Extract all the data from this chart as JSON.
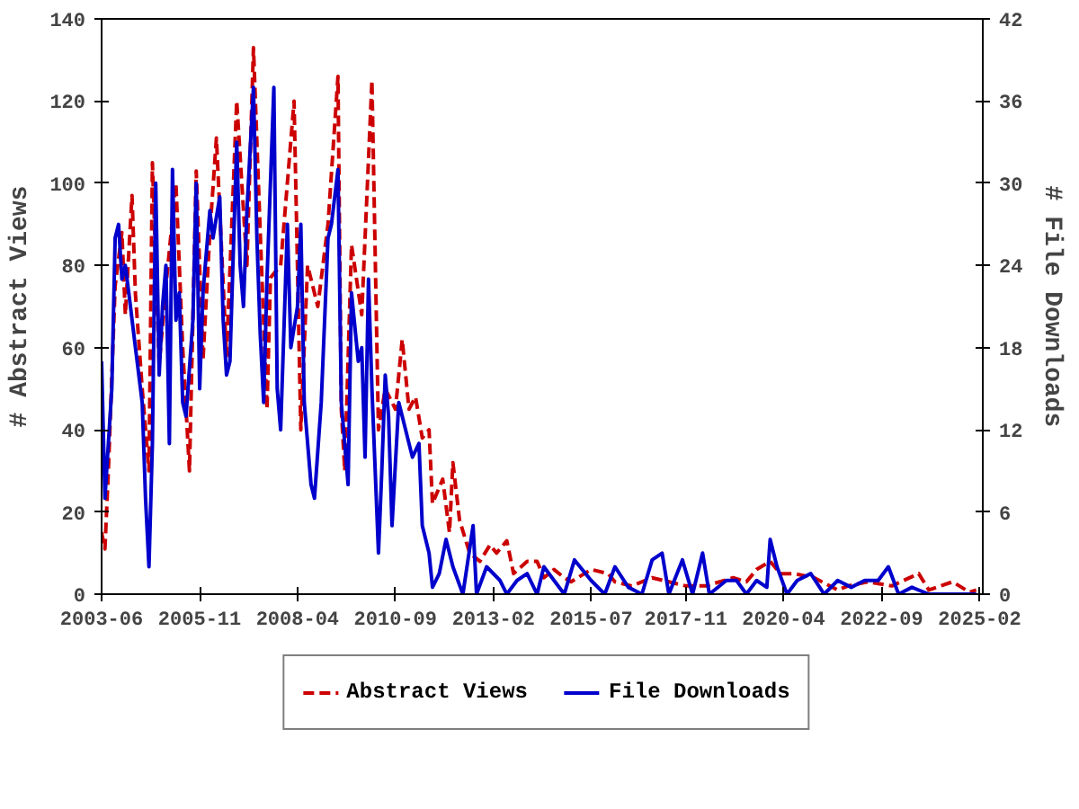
{
  "chart_data": {
    "type": "line",
    "ylabel": "# Abstract Views",
    "y2label": "# File Downloads",
    "xlim": [
      "2003-06",
      "2025-03"
    ],
    "xticks": [
      {
        "value": "2003-06",
        "label": "2003-06"
      },
      {
        "value": "2005-11",
        "label": "2005-11"
      },
      {
        "value": "2008-04",
        "label": "2008-04"
      },
      {
        "value": "2010-09",
        "label": "2010-09"
      },
      {
        "value": "2013-02",
        "label": "2013-02"
      },
      {
        "value": "2015-07",
        "label": "2015-07"
      },
      {
        "value": "2017-11",
        "label": "2017-11"
      },
      {
        "value": "2020-04",
        "label": "2020-04"
      },
      {
        "value": "2022-09",
        "label": "2022-09"
      },
      {
        "value": "2025-02",
        "label": "2025-02"
      }
    ],
    "ylim": [
      0,
      140
    ],
    "yticks": [
      0,
      20,
      40,
      60,
      80,
      100,
      120,
      140
    ],
    "y2lim": [
      0,
      42
    ],
    "y2ticks": [
      0,
      6,
      12,
      18,
      24,
      30,
      36,
      42
    ],
    "grid": false,
    "legend": "bottom",
    "marker": "none",
    "series": [
      {
        "name": "Abstract Views",
        "color": "#cc0000",
        "line_style": "dashed",
        "x": [
          "2003-06",
          "2003-07",
          "2003-08",
          "2003-10",
          "2003-12",
          "2004-01",
          "2004-03",
          "2004-04",
          "2004-06",
          "2004-08",
          "2004-09",
          "2004-11",
          "2005-01",
          "2005-04",
          "2005-06",
          "2005-08",
          "2005-10",
          "2005-12",
          "2006-02",
          "2006-04",
          "2006-07",
          "2006-10",
          "2007-01",
          "2007-03",
          "2007-05",
          "2007-07",
          "2007-08",
          "2007-11",
          "2008-03",
          "2008-05",
          "2008-07",
          "2008-10",
          "2009-01",
          "2009-04",
          "2009-05",
          "2009-06",
          "2009-08",
          "2009-11",
          "2010-02",
          "2010-04",
          "2010-06",
          "2010-09",
          "2010-11",
          "2011-01",
          "2011-03",
          "2011-05",
          "2011-07",
          "2011-08",
          "2011-11",
          "2012-01",
          "2012-02",
          "2012-04",
          "2012-07",
          "2012-10",
          "2013-01",
          "2013-03",
          "2013-06",
          "2013-08",
          "2013-12",
          "2014-03",
          "2014-05",
          "2014-08",
          "2014-11",
          "2015-01",
          "2015-07",
          "2015-12",
          "2016-02",
          "2016-07",
          "2017-01",
          "2017-06",
          "2017-11",
          "2018-05",
          "2019-01",
          "2019-05",
          "2019-08",
          "2019-12",
          "2020-03",
          "2020-07",
          "2021-01",
          "2021-08",
          "2021-11",
          "2022-05",
          "2022-12",
          "2023-08",
          "2023-11",
          "2024-06",
          "2024-11",
          "2025-01"
        ],
        "values": [
          15,
          11,
          30,
          75,
          88,
          68,
          97,
          73,
          50,
          30,
          105,
          56,
          75,
          100,
          60,
          30,
          103,
          57,
          88,
          111,
          58,
          120,
          80,
          133,
          88,
          45,
          77,
          80,
          120,
          40,
          80,
          70,
          90,
          126,
          45,
          30,
          85,
          68,
          125,
          40,
          50,
          45,
          62,
          45,
          48,
          38,
          40,
          22,
          28,
          15,
          32,
          18,
          10,
          8,
          12,
          10,
          13,
          5,
          8,
          8,
          4,
          6,
          4,
          3,
          6,
          5,
          3,
          2,
          4,
          3,
          2,
          2,
          4,
          3,
          6,
          8,
          5,
          5,
          4,
          1,
          2,
          3,
          2,
          5,
          1,
          3,
          0.5,
          1
        ]
      },
      {
        "name": "File Downloads",
        "color": "#0000cc",
        "line_style": "solid",
        "axis": "y2",
        "x": [
          "2003-06",
          "2003-07",
          "2003-08",
          "2003-09",
          "2003-10",
          "2003-11",
          "2003-12",
          "2004-01",
          "2004-02",
          "2004-04",
          "2004-06",
          "2004-07",
          "2004-08",
          "2004-09",
          "2004-10",
          "2004-11",
          "2004-12",
          "2005-01",
          "2005-02",
          "2005-03",
          "2005-04",
          "2005-05",
          "2005-06",
          "2005-07",
          "2005-09",
          "2005-10",
          "2005-11",
          "2005-12",
          "2006-02",
          "2006-03",
          "2006-05",
          "2006-06",
          "2006-07",
          "2006-08",
          "2006-10",
          "2006-11",
          "2006-12",
          "2007-01",
          "2007-03",
          "2007-04",
          "2007-05",
          "2007-06",
          "2007-07",
          "2007-09",
          "2007-10",
          "2007-11",
          "2008-01",
          "2008-02",
          "2008-04",
          "2008-05",
          "2008-06",
          "2008-08",
          "2008-09",
          "2008-11",
          "2009-01",
          "2009-02",
          "2009-04",
          "2009-05",
          "2009-06",
          "2009-07",
          "2009-08",
          "2009-10",
          "2009-11",
          "2009-12",
          "2010-01",
          "2010-02",
          "2010-04",
          "2010-05",
          "2010-06",
          "2010-07",
          "2010-08",
          "2010-10",
          "2010-11",
          "2011-02",
          "2011-04",
          "2011-05",
          "2011-07",
          "2011-08",
          "2011-10",
          "2011-12",
          "2012-02",
          "2012-05",
          "2012-08",
          "2012-09",
          "2012-12",
          "2013-04",
          "2013-06",
          "2013-09",
          "2013-12",
          "2014-03",
          "2014-05",
          "2014-08",
          "2014-11",
          "2015-02",
          "2015-07",
          "2015-11",
          "2016-02",
          "2016-06",
          "2016-10",
          "2017-01",
          "2017-04",
          "2017-06",
          "2017-10",
          "2018-01",
          "2018-04",
          "2018-06",
          "2018-11",
          "2019-02",
          "2019-05",
          "2019-08",
          "2019-11",
          "2019-12",
          "2020-02",
          "2020-05",
          "2020-08",
          "2020-12",
          "2021-04",
          "2021-08",
          "2021-12",
          "2022-04",
          "2022-08",
          "2022-11",
          "2023-02",
          "2023-06",
          "2023-11",
          "2024-04",
          "2025-01"
        ],
        "values": [
          17,
          7,
          11,
          15,
          26,
          27,
          23,
          24,
          22,
          18,
          14,
          7,
          2,
          11,
          30,
          16,
          21,
          24,
          11,
          31,
          20,
          22,
          14,
          13,
          20,
          30,
          15,
          22,
          28,
          26,
          29,
          20,
          16,
          17,
          33,
          24,
          21,
          28,
          37,
          26,
          19,
          14,
          23,
          37,
          15,
          12,
          27,
          18,
          21,
          27,
          14,
          8,
          7,
          14,
          26,
          27,
          31,
          14,
          11,
          8,
          22,
          17,
          18,
          10,
          23,
          15,
          3,
          9,
          16,
          13,
          5,
          14,
          13,
          10,
          11,
          5,
          3,
          0.5,
          1.5,
          4,
          2,
          0,
          5,
          0,
          2,
          1,
          0,
          1,
          1.5,
          0,
          2,
          1,
          0,
          2.5,
          1,
          0,
          2,
          0.5,
          0,
          2.5,
          3,
          0,
          2.5,
          0,
          3,
          0,
          1,
          1,
          0,
          1,
          0.5,
          4,
          2,
          0,
          1,
          1.5,
          0,
          1,
          0.5,
          1,
          1,
          2,
          0,
          0.5,
          0,
          0,
          0
        ]
      }
    ]
  }
}
